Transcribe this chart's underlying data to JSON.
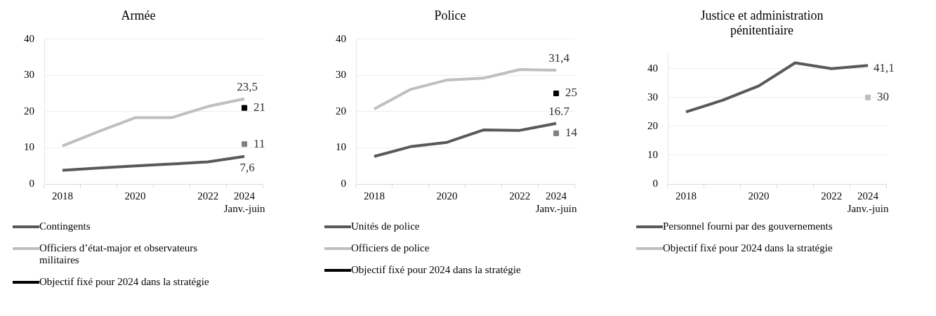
{
  "chart_data": [
    {
      "type": "line",
      "title": "Armée",
      "categories": [
        "2018",
        null,
        "2020",
        null,
        "2022",
        "2024 Janv.-juin"
      ],
      "ylim": [
        0,
        40
      ],
      "yticks": [
        0,
        10,
        20,
        30,
        40
      ],
      "grid": "y",
      "legend": "bottom",
      "series": [
        {
          "name": "Contingents",
          "color": "#595959",
          "values": [
            3.8,
            4.4,
            5,
            5.5,
            6.1,
            7.6
          ],
          "value_labels": [
            null,
            null,
            null,
            null,
            null,
            "7,6"
          ]
        },
        {
          "name": "Officiers d’état-major et observateurs militaires",
          "color": "#bfbfbf",
          "values": [
            10.5,
            14.5,
            18.3,
            18.3,
            21.4,
            23.5
          ],
          "value_labels": [
            null,
            null,
            null,
            null,
            null,
            "23,5"
          ]
        },
        {
          "name": "Objectif fixé pour 2024 dans la stratégie",
          "type": "scatter",
          "color": "#000000",
          "x": [
            "2024 Janv.-juin",
            "2024 Janv.-juin"
          ],
          "values": [
            21,
            11
          ],
          "colors": [
            "#000000",
            "#808080"
          ],
          "value_labels": [
            "21",
            "11"
          ]
        }
      ]
    },
    {
      "type": "line",
      "title": "Police",
      "categories": [
        "2018",
        null,
        "2020",
        null,
        "2022",
        "2024 Janv.-juin"
      ],
      "ylim": [
        0,
        40
      ],
      "yticks": [
        0,
        10,
        20,
        30,
        40
      ],
      "grid": "y",
      "legend": "bottom",
      "series": [
        {
          "name": "Unités de police",
          "color": "#595959",
          "values": [
            7.6,
            10.3,
            11.5,
            14.9,
            14.8,
            16.7
          ],
          "value_labels": [
            null,
            null,
            null,
            null,
            null,
            "16.7"
          ]
        },
        {
          "name": "Officiers de police",
          "color": "#bfbfbf",
          "values": [
            20.7,
            26.1,
            28.7,
            29.2,
            31.6,
            31.4
          ],
          "value_labels": [
            null,
            null,
            null,
            null,
            null,
            "31,4"
          ]
        },
        {
          "name": "Objectif fixé pour 2024 dans la stratégie",
          "type": "scatter",
          "color": "#000000",
          "x": [
            "2024 Janv.-juin",
            "2024 Janv.-juin"
          ],
          "values": [
            25,
            14
          ],
          "colors": [
            "#000000",
            "#808080"
          ],
          "value_labels": [
            "25",
            "14"
          ]
        }
      ]
    },
    {
      "type": "line",
      "title": "Justice et administration pénitentiaire",
      "categories": [
        "2018",
        null,
        "2020",
        null,
        "2022",
        "2024 Janv.-juin"
      ],
      "ylim": [
        0,
        45
      ],
      "yticks": [
        0,
        10,
        20,
        30,
        40
      ],
      "grid": "y",
      "legend": "bottom",
      "series": [
        {
          "name": "Personnel fourni par des gouvernements",
          "color": "#595959",
          "values": [
            25,
            29,
            34,
            42,
            40,
            41.1
          ],
          "value_labels": [
            null,
            null,
            null,
            null,
            null,
            "41,1"
          ]
        },
        {
          "name": "Objectif fixé pour 2024 dans la stratégie",
          "type": "scatter",
          "color": "#bfbfbf",
          "x": [
            "2024 Janv.-juin"
          ],
          "values": [
            30
          ],
          "value_labels": [
            "30"
          ]
        }
      ]
    }
  ]
}
